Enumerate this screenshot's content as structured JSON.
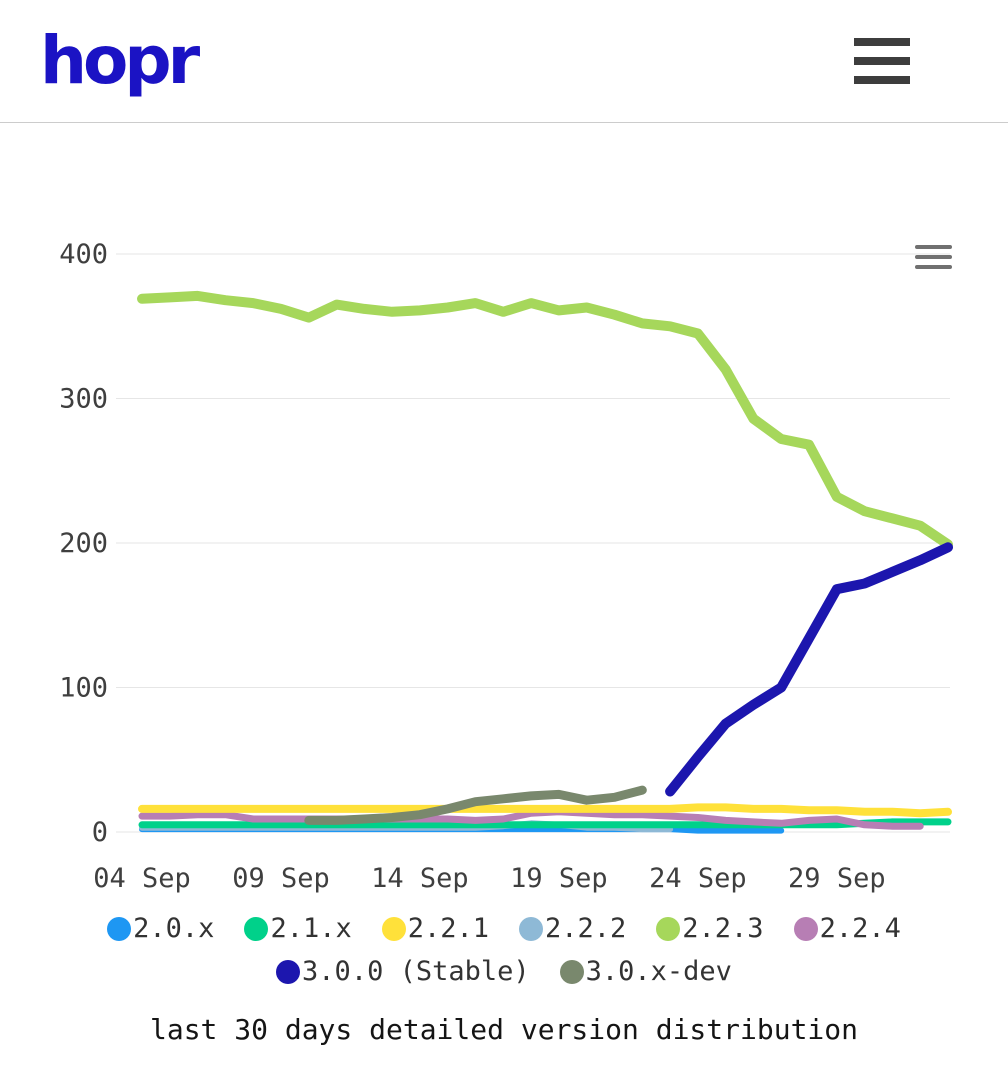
{
  "header": {
    "logo_text": "hopr",
    "menu_icon": "hamburger-icon"
  },
  "chart": {
    "menu_icon": "chart-context-menu-icon",
    "caption": "last 30 days detailed version distribution"
  },
  "chart_data": {
    "type": "line",
    "title": "",
    "xlabel": "",
    "ylabel": "",
    "ylim": [
      0,
      400
    ],
    "yticks": [
      0,
      100,
      200,
      300,
      400
    ],
    "grid": "horizontal",
    "legend_position": "bottom",
    "x": [
      "04 Sep",
      "05 Sep",
      "06 Sep",
      "07 Sep",
      "08 Sep",
      "09 Sep",
      "10 Sep",
      "11 Sep",
      "12 Sep",
      "13 Sep",
      "14 Sep",
      "15 Sep",
      "16 Sep",
      "17 Sep",
      "18 Sep",
      "19 Sep",
      "20 Sep",
      "21 Sep",
      "22 Sep",
      "23 Sep",
      "24 Sep",
      "25 Sep",
      "26 Sep",
      "27 Sep",
      "28 Sep",
      "29 Sep",
      "30 Sep",
      "01 Oct",
      "02 Oct",
      "03 Oct"
    ],
    "x_ticks": [
      {
        "index": 0,
        "label": "04 Sep"
      },
      {
        "index": 5,
        "label": "09 Sep"
      },
      {
        "index": 10,
        "label": "14 Sep"
      },
      {
        "index": 15,
        "label": "19 Sep"
      },
      {
        "index": 20,
        "label": "24 Sep"
      },
      {
        "index": 25,
        "label": "29 Sep"
      }
    ],
    "series": [
      {
        "name": "2.0.x",
        "color": "#1e97f3",
        "width": 6,
        "values": [
          2,
          2,
          2,
          2,
          2,
          2,
          2,
          2,
          2,
          2,
          2,
          2,
          2,
          2,
          2,
          2,
          2,
          2,
          2,
          2,
          1,
          1,
          1,
          1,
          null,
          null,
          null,
          null,
          null,
          null
        ]
      },
      {
        "name": "2.1.x",
        "color": "#00d18a",
        "width": 7,
        "values": [
          5,
          5,
          5,
          5,
          5,
          5,
          5,
          5,
          5,
          5,
          5,
          5,
          5,
          5,
          5,
          5,
          5,
          5,
          5,
          5,
          5,
          5,
          5,
          5,
          5,
          5,
          6,
          7,
          7,
          7
        ]
      },
      {
        "name": "2.2.1",
        "color": "#ffe13a",
        "width": 8,
        "values": [
          16,
          16,
          16,
          16,
          16,
          16,
          16,
          16,
          16,
          16,
          16,
          16,
          16,
          16,
          16,
          16,
          16,
          16,
          16,
          16,
          17,
          17,
          16,
          16,
          15,
          15,
          14,
          14,
          13,
          14
        ]
      },
      {
        "name": "2.2.2",
        "color": "#8eb9d6",
        "width": 6,
        "values": [
          3,
          3,
          3,
          3,
          3,
          3,
          3,
          3,
          3,
          3,
          3,
          3,
          3,
          4,
          6,
          5,
          3,
          3,
          2,
          2,
          null,
          null,
          null,
          null,
          null,
          null,
          null,
          null,
          null,
          null
        ]
      },
      {
        "name": "2.2.3",
        "color": "#a6d75b",
        "width": 10,
        "values": [
          369,
          370,
          371,
          368,
          366,
          362,
          356,
          365,
          362,
          360,
          361,
          363,
          366,
          360,
          366,
          361,
          363,
          358,
          352,
          350,
          345,
          320,
          286,
          272,
          268,
          232,
          222,
          217,
          212,
          199
        ]
      },
      {
        "name": "2.2.4",
        "color": "#b77eb4",
        "width": 7,
        "values": [
          11,
          11,
          12,
          12,
          9,
          9,
          9,
          9,
          9,
          9,
          9,
          9,
          8,
          9,
          13,
          14,
          13,
          12,
          12,
          11,
          10,
          8,
          7,
          6,
          8,
          9,
          5,
          4,
          4,
          null
        ]
      },
      {
        "name": "3.0.0 (Stable)",
        "color": "#1c16ae",
        "width": 10,
        "values": [
          null,
          null,
          null,
          null,
          null,
          null,
          null,
          null,
          null,
          null,
          null,
          null,
          null,
          null,
          null,
          null,
          null,
          null,
          null,
          28,
          52,
          75,
          88,
          100,
          134,
          168,
          172,
          180,
          188,
          197
        ]
      },
      {
        "name": "3.0.x-dev",
        "color": "#79886d",
        "width": 9,
        "values": [
          null,
          null,
          null,
          null,
          null,
          null,
          8,
          8,
          9,
          10,
          12,
          16,
          21,
          23,
          25,
          26,
          22,
          24,
          29,
          null,
          null,
          null,
          null,
          null,
          null,
          null,
          null,
          null,
          null,
          null
        ]
      }
    ],
    "draw_order": [
      0,
      3,
      1,
      5,
      2,
      7,
      4,
      6
    ],
    "legend_rows": [
      [
        0,
        1,
        2,
        3,
        4,
        5
      ],
      [
        6,
        7
      ]
    ]
  }
}
